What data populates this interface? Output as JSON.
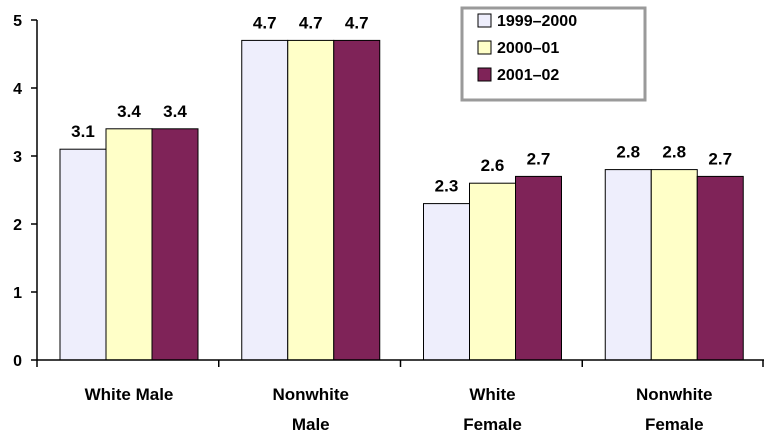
{
  "chart_data": {
    "type": "bar",
    "categories": [
      [
        "White Male"
      ],
      [
        "Nonwhite",
        "Male"
      ],
      [
        "White",
        "Female"
      ],
      [
        "Nonwhite",
        "Female"
      ]
    ],
    "series": [
      {
        "name": "1999–2000",
        "color": "#eeeefc",
        "values": [
          3.1,
          4.7,
          2.3,
          2.8
        ]
      },
      {
        "name": "2000–01",
        "color": "#ffffc8",
        "values": [
          3.4,
          4.7,
          2.6,
          2.8
        ]
      },
      {
        "name": "2001–02",
        "color": "#7f2358",
        "values": [
          3.4,
          4.7,
          2.7,
          2.7
        ]
      }
    ],
    "ylim": [
      0,
      5
    ],
    "yticks": [
      "0",
      "1",
      "2",
      "3",
      "4",
      "5"
    ],
    "title": "",
    "xlabel": "",
    "ylabel": "",
    "grid": false,
    "legend": "top-right"
  }
}
